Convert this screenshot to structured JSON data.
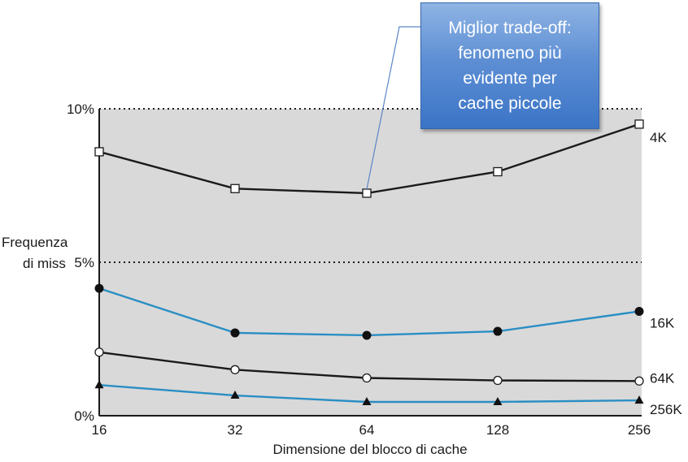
{
  "chart_data": {
    "type": "line",
    "categories": [
      "16",
      "32",
      "64",
      "128",
      "256"
    ],
    "xlabel": "Dimensione del blocco di cache",
    "ylabel_lines": [
      "Frequenza",
      "di miss"
    ],
    "y_ticks": [
      {
        "value": 0,
        "label": "0%"
      },
      {
        "value": 5,
        "label": "5%"
      },
      {
        "value": 10,
        "label": "10%"
      }
    ],
    "ylim": [
      0,
      10
    ],
    "grid": "dotted at 5% and 10%",
    "series": [
      {
        "name": "4K",
        "marker": "open-square",
        "color": "#1a1a1a",
        "values": [
          8.6,
          7.4,
          7.25,
          7.95,
          9.5
        ]
      },
      {
        "name": "16K",
        "marker": "filled-circle",
        "color": "#2a8ec4",
        "values": [
          4.15,
          2.7,
          2.62,
          2.75,
          3.4
        ]
      },
      {
        "name": "64K",
        "marker": "open-circle",
        "color": "#1a1a1a",
        "values": [
          2.07,
          1.5,
          1.23,
          1.15,
          1.13
        ]
      },
      {
        "name": "256K",
        "marker": "filled-triangle",
        "color": "#2a8ec4",
        "values": [
          1.0,
          0.66,
          0.45,
          0.45,
          0.5
        ]
      }
    ]
  },
  "callout": {
    "lines": [
      "Miglior trade-off:",
      "fenomeno più",
      "evidente per",
      "cache piccole"
    ],
    "points_to": {
      "series": "4K",
      "category": "64"
    }
  }
}
